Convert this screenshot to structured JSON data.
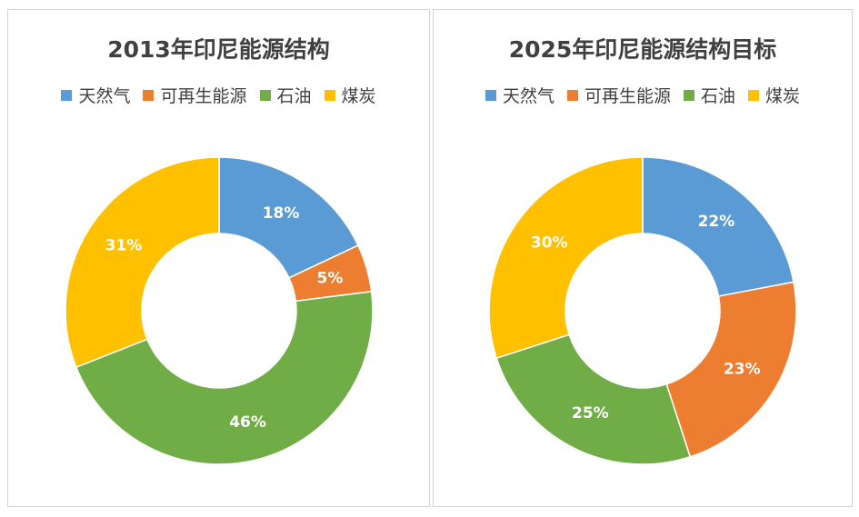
{
  "chart_data": [
    {
      "type": "pie",
      "subtype": "donut",
      "title": "2013年印尼能源结构",
      "categories": [
        "天然气",
        "可再生能源",
        "石油",
        "煤炭"
      ],
      "values": [
        18,
        5,
        46,
        31
      ],
      "labels": [
        "18%",
        "5%",
        "46%",
        "31%"
      ],
      "colors": [
        "#5B9BD5",
        "#ED7D31",
        "#70AD47",
        "#FFC000"
      ],
      "legend_position": "top"
    },
    {
      "type": "pie",
      "subtype": "donut",
      "title": "2025年印尼能源结构目标",
      "categories": [
        "天然气",
        "可再生能源",
        "石油",
        "煤炭"
      ],
      "values": [
        22,
        23,
        25,
        30
      ],
      "labels": [
        "22%",
        "23%",
        "25%",
        "30%"
      ],
      "colors": [
        "#5B9BD5",
        "#ED7D31",
        "#70AD47",
        "#FFC000"
      ],
      "legend_position": "top"
    }
  ]
}
